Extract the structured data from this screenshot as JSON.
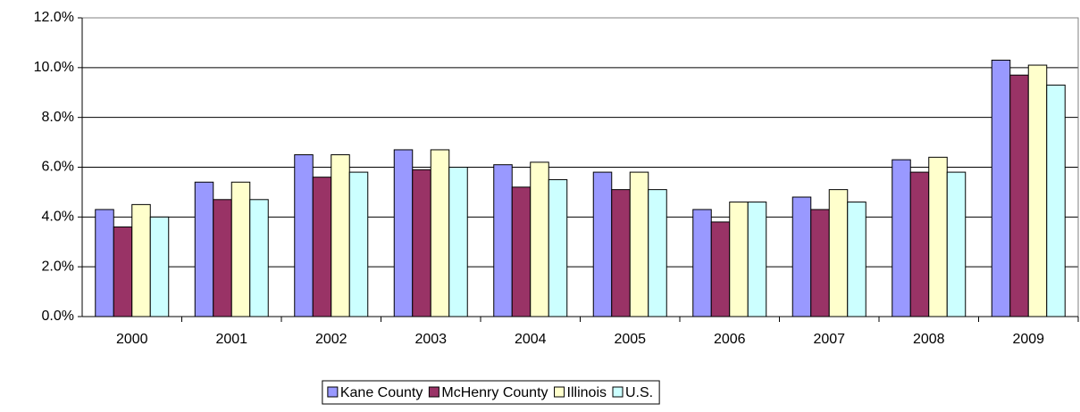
{
  "chart_data": {
    "type": "bar",
    "categories": [
      "2000",
      "2001",
      "2002",
      "2003",
      "2004",
      "2005",
      "2006",
      "2007",
      "2008",
      "2009"
    ],
    "series": [
      {
        "name": "Kane County",
        "color": "#9999ff",
        "values": [
          4.3,
          5.4,
          6.5,
          6.7,
          6.1,
          5.8,
          4.3,
          4.8,
          6.3,
          10.3
        ]
      },
      {
        "name": "McHenry County",
        "color": "#993366",
        "values": [
          3.6,
          4.7,
          5.6,
          5.9,
          5.2,
          5.1,
          3.8,
          4.3,
          5.8,
          9.7
        ]
      },
      {
        "name": "Illinois",
        "color": "#ffffcc",
        "values": [
          4.5,
          5.4,
          6.5,
          6.7,
          6.2,
          5.8,
          4.6,
          5.1,
          6.4,
          10.1
        ]
      },
      {
        "name": "U.S.",
        "color": "#ccffff",
        "values": [
          4.0,
          4.7,
          5.8,
          6.0,
          5.5,
          5.1,
          4.6,
          4.6,
          5.8,
          9.3
        ]
      }
    ],
    "ylim": [
      0,
      12
    ],
    "yticks": [
      {
        "value": 0,
        "label": "0.0%"
      },
      {
        "value": 2,
        "label": "2.0%"
      },
      {
        "value": 4,
        "label": "4.0%"
      },
      {
        "value": 6,
        "label": "6.0%"
      },
      {
        "value": 8,
        "label": "8.0%"
      },
      {
        "value": 10,
        "label": "10.0%"
      },
      {
        "value": 12,
        "label": "12.0%"
      }
    ],
    "grid": true,
    "legend": "bottom"
  }
}
